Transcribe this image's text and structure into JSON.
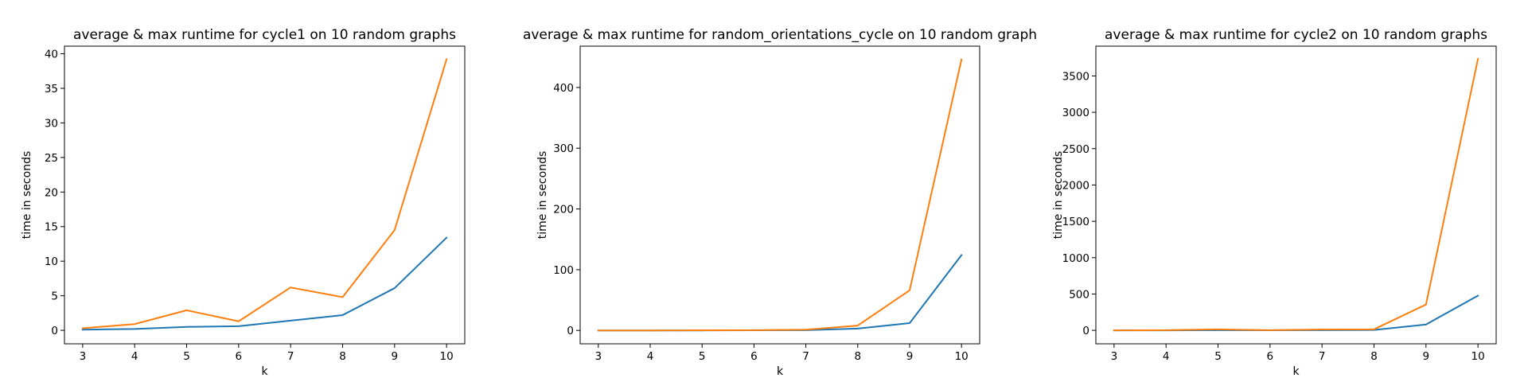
{
  "chart_data": [
    {
      "type": "line",
      "title": "average & max runtime for cycle1 on 10 random graphs",
      "xlabel": "k",
      "ylabel": "time in seconds",
      "x": [
        3,
        4,
        5,
        6,
        7,
        8,
        9,
        10
      ],
      "xlim": [
        2.65,
        10.35
      ],
      "ylim": [
        -1.95,
        41.1
      ],
      "xticks": [
        3,
        4,
        5,
        6,
        7,
        8,
        9,
        10
      ],
      "yticks": [
        0,
        5,
        10,
        15,
        20,
        25,
        30,
        35,
        40
      ],
      "grid": false,
      "legend": "none",
      "series": [
        {
          "color": "#1f77b4",
          "values": [
            0.1,
            0.2,
            0.5,
            0.6,
            1.4,
            2.2,
            6.1,
            13.4
          ]
        },
        {
          "color": "#ff7f0e",
          "values": [
            0.3,
            0.9,
            2.9,
            1.3,
            6.2,
            4.8,
            14.5,
            39.2
          ]
        }
      ]
    },
    {
      "type": "line",
      "title": "average & max runtime for random_orientations_cycle on 10 random graph",
      "xlabel": "k",
      "ylabel": "time in seconds",
      "x": [
        3,
        4,
        5,
        6,
        7,
        8,
        9,
        10
      ],
      "xlim": [
        2.65,
        10.35
      ],
      "ylim": [
        -22,
        468
      ],
      "xticks": [
        3,
        4,
        5,
        6,
        7,
        8,
        9,
        10
      ],
      "yticks": [
        0,
        100,
        200,
        300,
        400
      ],
      "grid": false,
      "legend": "none",
      "series": [
        {
          "color": "#1f77b4",
          "values": [
            0,
            0,
            0,
            0.3,
            0.5,
            3,
            12,
            124
          ]
        },
        {
          "color": "#ff7f0e",
          "values": [
            0,
            0,
            0.2,
            0.5,
            1.2,
            8,
            66,
            446
          ]
        }
      ]
    },
    {
      "type": "line",
      "title": "average & max runtime for cycle2 on 10 random graphs",
      "xlabel": "k",
      "ylabel": "time in seconds",
      "x": [
        3,
        4,
        5,
        6,
        7,
        8,
        9,
        10
      ],
      "xlim": [
        2.65,
        10.35
      ],
      "ylim": [
        -185,
        3910
      ],
      "xticks": [
        3,
        4,
        5,
        6,
        7,
        8,
        9,
        10
      ],
      "yticks": [
        0,
        500,
        1000,
        1500,
        2000,
        2500,
        3000,
        3500
      ],
      "grid": false,
      "legend": "none",
      "series": [
        {
          "color": "#1f77b4",
          "values": [
            0,
            0,
            2,
            1,
            3,
            5,
            80,
            478
          ]
        },
        {
          "color": "#ff7f0e",
          "values": [
            0,
            3,
            14,
            2,
            12,
            14,
            355,
            3735
          ]
        }
      ]
    }
  ]
}
